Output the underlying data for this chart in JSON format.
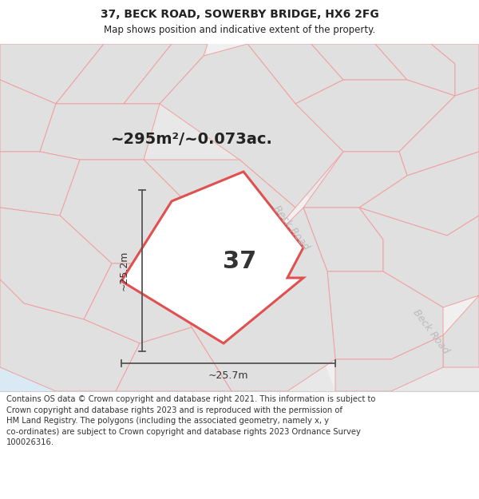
{
  "title_line1": "37, BECK ROAD, SOWERBY BRIDGE, HX6 2FG",
  "title_line2": "Map shows position and indicative extent of the property.",
  "area_text": "~295m²/~0.073ac.",
  "number_label": "37",
  "dim_horiz": "~25.7m",
  "dim_vert": "~25.2m",
  "road_label_1": "Beck Road",
  "road_label_2": "Beck Road",
  "footer_text": "Contains OS data © Crown copyright and database right 2021. This information is subject to\nCrown copyright and database rights 2023 and is reproduced with the permission of\nHM Land Registry. The polygons (including the associated geometry, namely x, y\nco-ordinates) are subject to Crown copyright and database rights 2023 Ordnance Survey\n100026316.",
  "map_bg": "#e8e8e8",
  "blue_area": "#daeaf5",
  "parcel_fill": "#ffffff",
  "parcel_edge": "#e05050",
  "grid_line_color": "#f0a0a0",
  "parcel_bg": "#d8d8d8",
  "dim_line_color": "#555555",
  "title_fontsize": 10,
  "subtitle_fontsize": 8.5,
  "area_fontsize": 14,
  "number_fontsize": 22,
  "road_fontsize": 9,
  "footer_fontsize": 7.2,
  "road_text_color": "#bbbbbb",
  "text_color": "#222222"
}
